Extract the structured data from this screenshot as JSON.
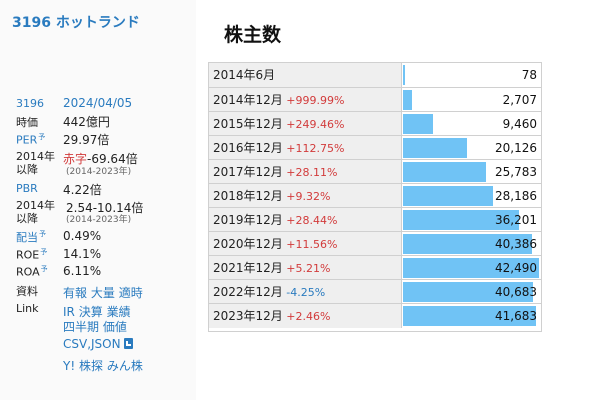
{
  "company": {
    "code_name": "3196 ホットランド"
  },
  "info": {
    "code": "3196",
    "date": "2024/04/05",
    "market_cap_label": "時価",
    "market_cap": "442億円",
    "per_label": "PER",
    "per": "29.97倍",
    "year2014_label": "2014年以降",
    "per_range_prefix": "赤字",
    "per_range": "-69.64倍",
    "per_range_years": "(2014-2023年)",
    "pbr_label": "PBR",
    "pbr": "4.22倍",
    "pbr_range": "2.54-10.14倍",
    "pbr_range_years": "(2014-2023年)",
    "dividend_label": "配当",
    "dividend": "0.49%",
    "roe_label": "ROE",
    "roe": "14.1%",
    "roa_label": "ROA",
    "roa": "6.11%",
    "material_label": "資料",
    "materials": [
      "有報",
      "大量",
      "適時"
    ],
    "link_label": "Link",
    "links_row1": [
      "IR",
      "決算",
      "業績"
    ],
    "links_row2": [
      "四半期",
      "価値"
    ],
    "csv_json": "CSV,JSON",
    "links_row3": [
      "Y!",
      "株探",
      "みん株"
    ],
    "tiny_mark": "予"
  },
  "chart_data": {
    "type": "bar",
    "title": "株主数",
    "categories": [
      "2014年6月",
      "2014年12月",
      "2015年12月",
      "2016年12月",
      "2017年12月",
      "2018年12月",
      "2019年12月",
      "2020年12月",
      "2021年12月",
      "2022年12月",
      "2023年12月"
    ],
    "changes": [
      "",
      "+999.99%",
      "+249.46%",
      "+112.75%",
      "+28.11%",
      "+9.32%",
      "+28.44%",
      "+11.56%",
      "+5.21%",
      "-4.25%",
      "+2.46%"
    ],
    "values": [
      78,
      2707,
      9460,
      20126,
      25783,
      28186,
      36201,
      40386,
      42490,
      40683,
      41683
    ],
    "value_labels": [
      "78",
      "2,707",
      "9,460",
      "20,126",
      "25,783",
      "28,186",
      "36,201",
      "40,386",
      "42,490",
      "40,683",
      "41,683"
    ],
    "xlim": [
      0,
      42490
    ],
    "bar_color": "#70c3f5",
    "up_color": "#d23b3b",
    "down_color": "#2a7bbf"
  }
}
